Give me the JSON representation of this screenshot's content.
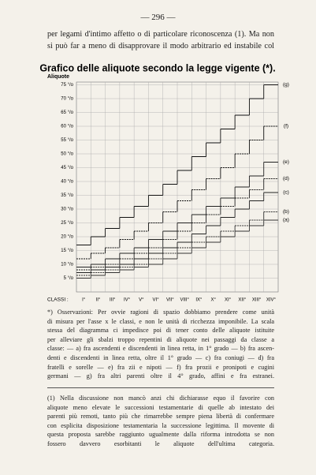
{
  "page_number": "— 296 —",
  "intro_lines": [
    "per legami d'intimo affetto o di particolare riconoscenza (1). Ma non",
    "si può far a meno di disapprovare il modo arbitrario ed instabile col"
  ],
  "chart_data": {
    "type": "step",
    "title": "Grafico delle aliquote secondo la legge vigente (*).",
    "y_label": "Aliquote",
    "x_label": "CLASSI :",
    "categories": [
      "I°",
      "II°",
      "III°",
      "IV°",
      "V°",
      "VI°",
      "VII°",
      "VIII°",
      "IX°",
      "X°",
      "XI°",
      "XII°",
      "XIII°",
      "XIV°"
    ],
    "ylim": [
      0,
      76
    ],
    "yticks": [
      {
        "value": 5,
        "label": "5 °/o"
      },
      {
        "value": 10,
        "label": "10 °/o"
      },
      {
        "value": 15,
        "label": "15 °/o"
      },
      {
        "value": 20,
        "label": "20 °/o"
      },
      {
        "value": 25,
        "label": "25 °/o"
      },
      {
        "value": 30,
        "label": "30 °/o"
      },
      {
        "value": 35,
        "label": "35 °/o"
      },
      {
        "value": 40,
        "label": "40 °/o"
      },
      {
        "value": 45,
        "label": "45 °/o"
      },
      {
        "value": 50,
        "label": "50 °/o"
      },
      {
        "value": 55,
        "label": "55 °/o"
      },
      {
        "value": 60,
        "label": "60 °/o"
      },
      {
        "value": 65,
        "label": "65 °/o"
      },
      {
        "value": 70,
        "label": "70 °/o"
      },
      {
        "value": 75,
        "label": "75 °/o"
      }
    ],
    "grid": true,
    "series": [
      {
        "name": "(a)",
        "color": "#333",
        "values": [
          5,
          6,
          7,
          8,
          9,
          10,
          12,
          14,
          16,
          18,
          20,
          22,
          24,
          26
        ]
      },
      {
        "name": "(b)",
        "color": "#333",
        "values": [
          6,
          7,
          8,
          9,
          10,
          12,
          14,
          16,
          18,
          20,
          22,
          24,
          26,
          29
        ]
      },
      {
        "name": "(c)",
        "color": "#222",
        "values": [
          7,
          8,
          9,
          10,
          12,
          14,
          16,
          18,
          21,
          24,
          27,
          30,
          33,
          36
        ]
      },
      {
        "name": "(d)",
        "color": "#222",
        "values": [
          8,
          9,
          10,
          12,
          14,
          16,
          19,
          22,
          25,
          28,
          31,
          34,
          37,
          41
        ]
      },
      {
        "name": "(e)",
        "color": "#222",
        "values": [
          9,
          10,
          12,
          14,
          16,
          19,
          22,
          25,
          28,
          31,
          34,
          38,
          42,
          47
        ]
      },
      {
        "name": "(f)",
        "color": "#111",
        "values": [
          12,
          14,
          16,
          19,
          22,
          25,
          29,
          33,
          37,
          41,
          45,
          50,
          55,
          60
        ]
      },
      {
        "name": "(g)",
        "color": "#111",
        "values": [
          17,
          20,
          23,
          27,
          31,
          35,
          39,
          44,
          49,
          54,
          59,
          64,
          70,
          75
        ]
      }
    ]
  },
  "footnote_lines": [
    "*) Osservazioni: Per ovvie ragioni di spazio dobbiamo prendere come unità",
    "di misura per l'asse x le classi, e non le unità di ricchezza imponibile. La scala",
    "stessa del diagramma ci impedisce poi di tener conto delle aliquote istituite",
    "per alleviare gli sbalzi troppo repentini di aliquote nei passaggi da classe a",
    "classe: — a) fra ascendenti e discendenti in linea retta, in 1° grado — b) fra ascen-",
    "denti e discendenti in linea retta, oltre il 1° grado — c) fra coniugi — d) fra",
    "fratelli e sorelle — e) fra zii e nipoti — f) fra prozii e pronipoti e cugini",
    "germani — g) fra altri parenti oltre il 4° grado, affini e fra estranei."
  ],
  "note_lines": [
    "(1) Nella discussione non mancò anzi chi dichiarasse equo il favorire con",
    "aliquote meno elevate le successioni testamentarie di quelle ab intestato dei",
    "parenti più remoti, tanto più che rimarrebbe sempre piena libertà di confermare",
    "con esplicita disposizione testamentaria la successione legittima. Il movente di",
    "questa proposta sarebbe raggiunto ugualmente dalla riforma introdotta se non",
    "fossero davvero esorbitanti le aliquote dell'ultima categoria."
  ]
}
